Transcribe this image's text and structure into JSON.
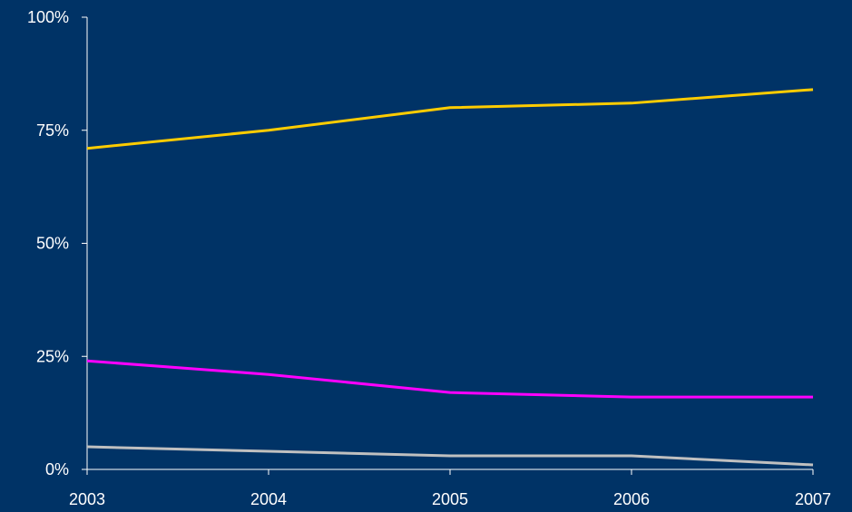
{
  "colors": {
    "background": "#003366",
    "axis": "#ffffff",
    "text": "#ffffff"
  },
  "chart_data": {
    "type": "line",
    "title": "",
    "xlabel": "",
    "ylabel": "",
    "x": [
      "2003",
      "2004",
      "2005",
      "2006",
      "2007"
    ],
    "ylim": [
      0,
      100
    ],
    "y_ticks": [
      0,
      25,
      50,
      75,
      100
    ],
    "y_tick_labels": [
      "0%",
      "25%",
      "50%",
      "75%",
      "100%"
    ],
    "grid": false,
    "legend": "none",
    "series": [
      {
        "color": "#FFCC00",
        "values": [
          71,
          75,
          80,
          81,
          84
        ]
      },
      {
        "color": "#FF00FF",
        "values": [
          24,
          21,
          17,
          16,
          16
        ]
      },
      {
        "color": "#C0C0C0",
        "values": [
          5,
          4,
          3,
          3,
          1
        ]
      }
    ]
  }
}
